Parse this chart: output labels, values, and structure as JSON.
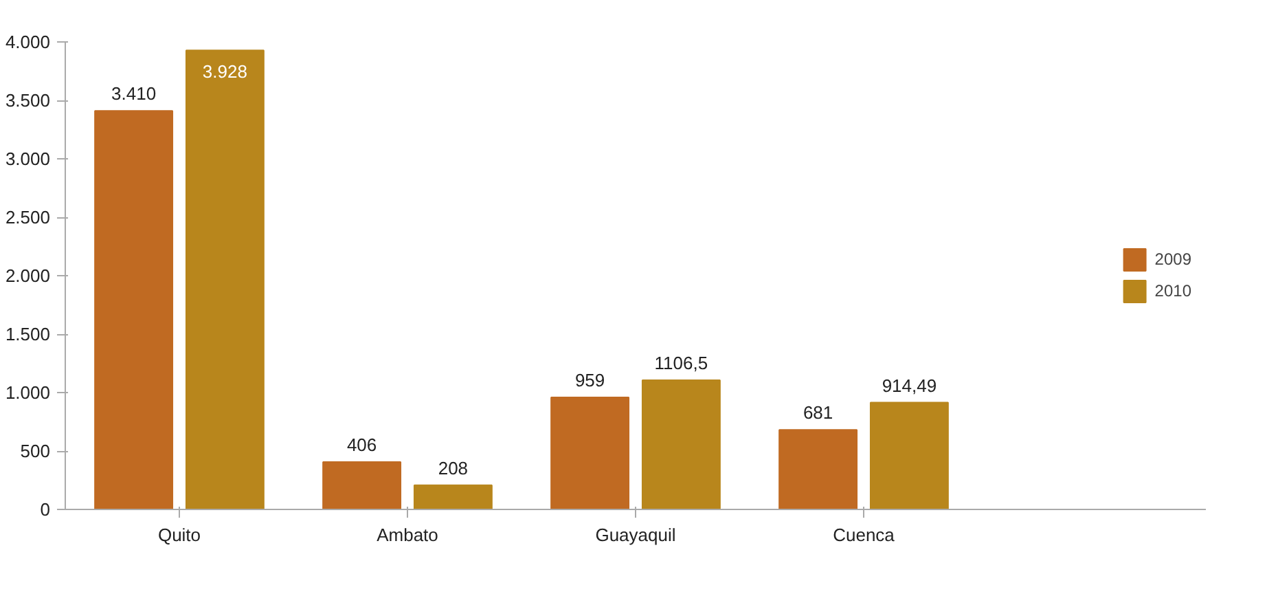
{
  "chart_data": {
    "type": "bar",
    "categories": [
      "Quito",
      "Ambato",
      "Guayaquil",
      "Cuenca"
    ],
    "series": [
      {
        "name": "2009",
        "color": "#c06a22",
        "values": [
          3410,
          406,
          959,
          681
        ],
        "value_labels": [
          "3.410",
          "406",
          "959",
          "681"
        ]
      },
      {
        "name": "2010",
        "color": "#b8861c",
        "values": [
          3928,
          208,
          1106.5,
          914.49
        ],
        "value_labels": [
          "3.928",
          "208",
          "1106,5",
          "914,49"
        ]
      }
    ],
    "ylim": [
      0,
      4000
    ],
    "yticks": [
      0,
      500,
      {
        "value": 1000,
        "label": "1.000"
      },
      {
        "value": 1500,
        "label": "1.500"
      },
      {
        "value": 2000,
        "label": "2.000"
      },
      {
        "value": 2500,
        "label": "2.500"
      },
      {
        "value": 3000,
        "label": "3.000"
      },
      {
        "value": 3500,
        "label": "3.500"
      },
      {
        "value": 4000,
        "label": "4.000"
      }
    ],
    "grid": false,
    "legend": "right"
  }
}
